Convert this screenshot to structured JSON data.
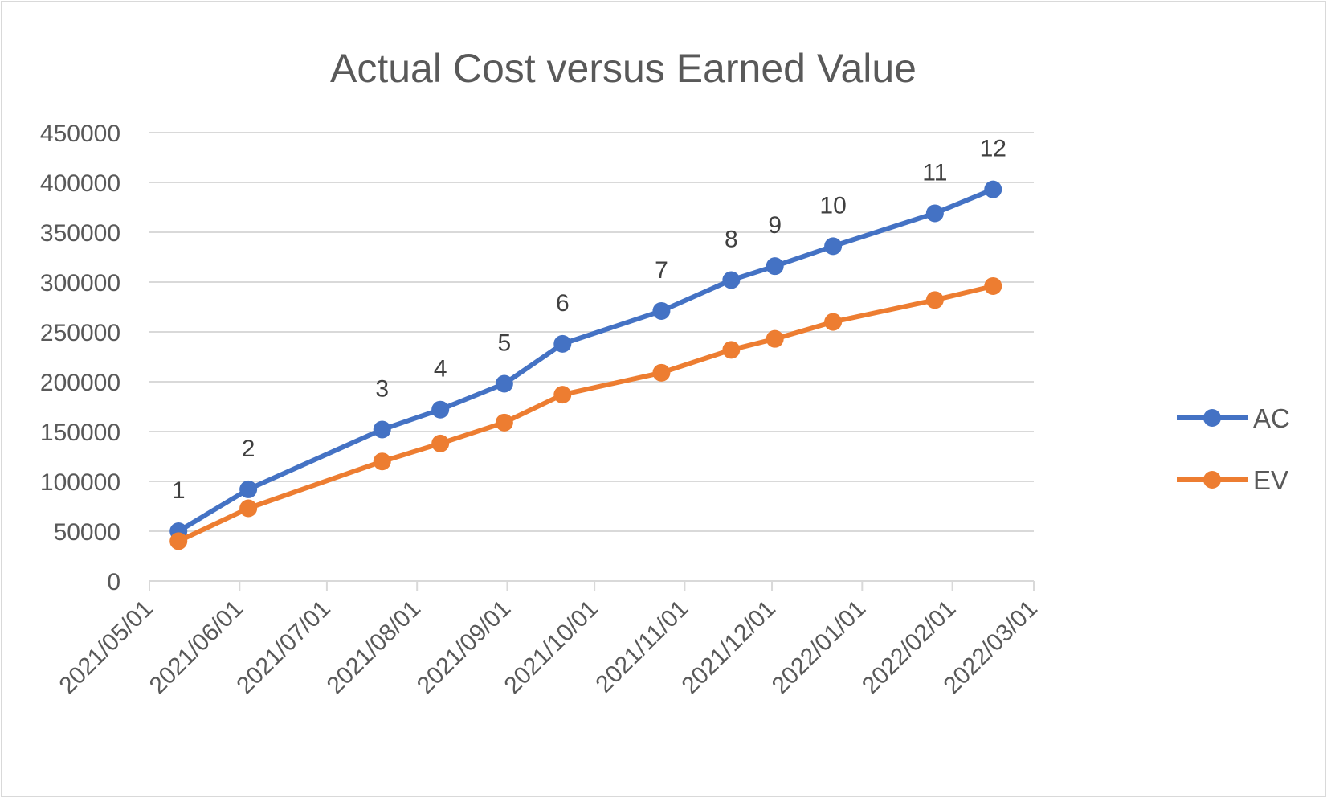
{
  "chart_data": {
    "type": "line",
    "title": "Actual Cost versus Earned Value",
    "xlabel": "",
    "ylabel": "",
    "x_axis": {
      "type": "date",
      "min": "2021/05/01",
      "max": "2022/03/01",
      "tick_labels": [
        "2021/05/01",
        "2021/06/01",
        "2021/07/01",
        "2021/08/01",
        "2021/09/01",
        "2021/10/01",
        "2021/11/01",
        "2021/12/01",
        "2022/01/01",
        "2022/02/01",
        "2022/03/01"
      ]
    },
    "y_axis": {
      "min": 0,
      "max": 450000,
      "step": 50000,
      "tick_labels": [
        "0",
        "50000",
        "100000",
        "150000",
        "200000",
        "250000",
        "300000",
        "350000",
        "400000",
        "450000"
      ]
    },
    "grid": true,
    "legend_position": "right",
    "x": [
      "2021/05/11",
      "2021/06/04",
      "2021/07/20",
      "2021/08/09",
      "2021/08/31",
      "2021/09/20",
      "2021/10/24",
      "2021/11/17",
      "2021/12/02",
      "2021/12/22",
      "2022/01/26",
      "2022/02/15"
    ],
    "point_labels": [
      "1",
      "2",
      "3",
      "4",
      "5",
      "6",
      "7",
      "8",
      "9",
      "10",
      "11",
      "12"
    ],
    "series": [
      {
        "name": "AC",
        "color": "#4472c4",
        "values": [
          50000,
          92000,
          152000,
          172000,
          198000,
          238000,
          271000,
          302000,
          316000,
          336000,
          369000,
          393000
        ]
      },
      {
        "name": "EV",
        "color": "#ed7d31",
        "values": [
          40000,
          73000,
          120000,
          138000,
          159000,
          187000,
          209000,
          232000,
          243000,
          260000,
          282000,
          296000
        ]
      }
    ]
  }
}
